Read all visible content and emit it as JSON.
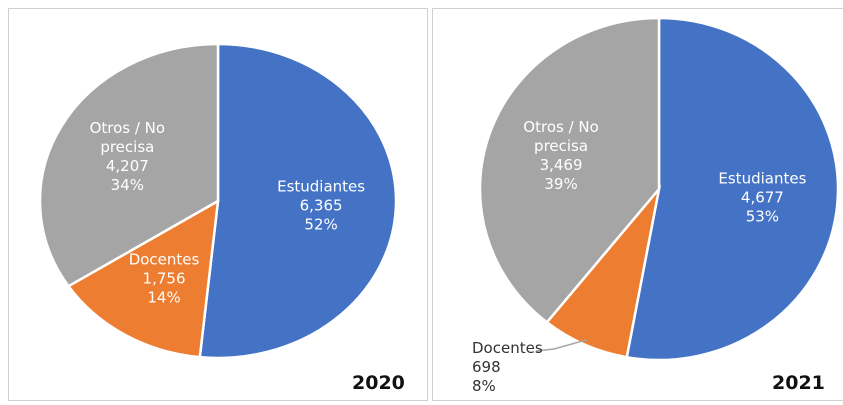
{
  "chart_data": [
    {
      "type": "pie",
      "title": "2020",
      "categories": [
        "Estudiantes",
        "Docentes",
        "Otros / No precisa"
      ],
      "values": [
        6365,
        1756,
        4207
      ],
      "value_labels": [
        "6,365",
        "1,756",
        "4,207"
      ],
      "percent_labels": [
        "52%",
        "14%",
        "34%"
      ],
      "colors": [
        "#4472c4",
        "#ed7d31",
        "#a5a5a5"
      ]
    },
    {
      "type": "pie",
      "title": "2021",
      "categories": [
        "Estudiantes",
        "Docentes",
        "Otros / No precisa"
      ],
      "values": [
        4677,
        698,
        3469
      ],
      "value_labels": [
        "4,677",
        "698",
        "3,469"
      ],
      "percent_labels": [
        "53%",
        "8%",
        "39%"
      ],
      "colors": [
        "#4472c4",
        "#ed7d31",
        "#a5a5a5"
      ]
    }
  ]
}
